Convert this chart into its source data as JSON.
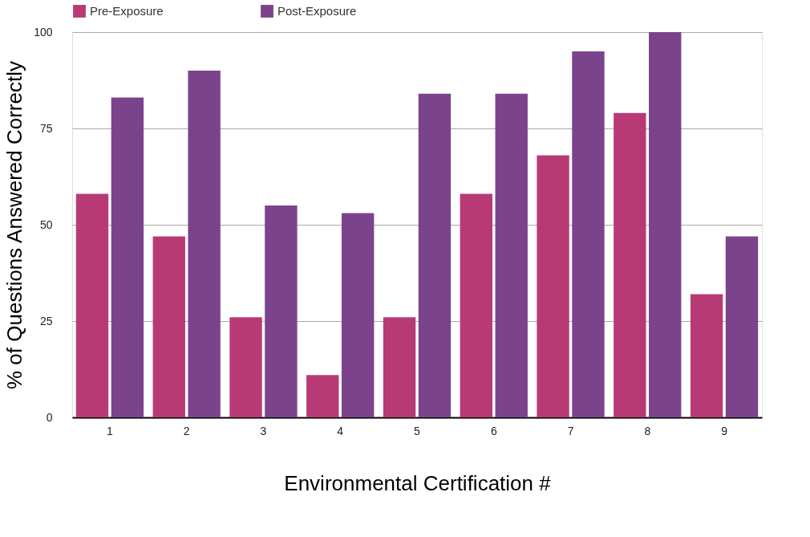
{
  "chart_data": {
    "type": "bar",
    "xlabel": "Environmental Certification #",
    "ylabel": "% of Questions Answered Correctly",
    "categories": [
      "1",
      "2",
      "3",
      "4",
      "5",
      "6",
      "7",
      "8",
      "9"
    ],
    "series": [
      {
        "name": "Pre-Exposure",
        "color": "#b83a74",
        "values": [
          58,
          47,
          26,
          11,
          26,
          58,
          68,
          79,
          32
        ]
      },
      {
        "name": "Post-Exposure",
        "color": "#7b438c",
        "values": [
          83,
          90,
          55,
          53,
          84,
          84,
          95,
          100,
          47
        ]
      }
    ],
    "ylim": [
      0,
      100
    ],
    "yticks": [
      0,
      25,
      50,
      75,
      100
    ],
    "grid": "y",
    "legend": "top"
  }
}
